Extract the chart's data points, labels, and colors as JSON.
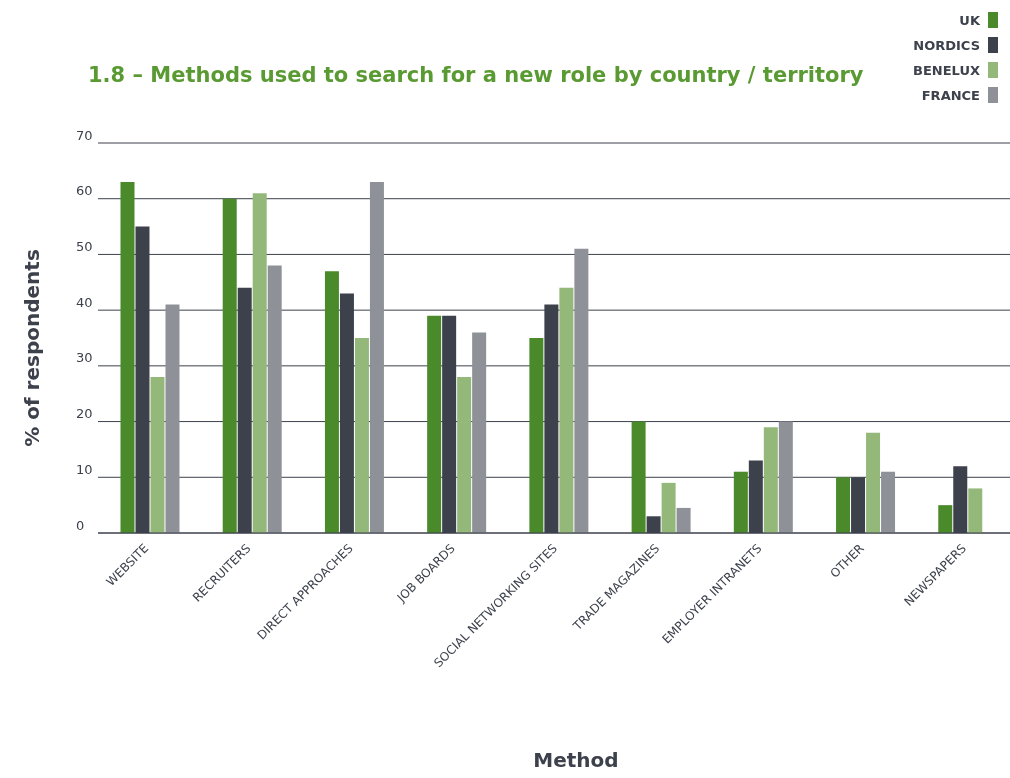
{
  "chart_data": {
    "type": "bar",
    "title": "1.8 – Methods used to search for a new role by country / territory",
    "xlabel": "Method",
    "ylabel": "% of respondents",
    "categories": [
      "WEBSITE",
      "RECRUITERS",
      "DIRECT APPROACHES",
      "JOB BOARDS",
      "SOCIAL NETWORKING SITES",
      "TRADE MAGAZINES",
      "EMPLOYER INTRANETS",
      "OTHER",
      "NEWSPAPERS"
    ],
    "series": [
      {
        "name": "UK",
        "color": "#4a8a2a",
        "values": [
          63,
          60,
          47,
          39,
          35,
          20,
          11,
          10,
          5
        ]
      },
      {
        "name": "NORDICS",
        "color": "#3c414c",
        "values": [
          55,
          44,
          43,
          39,
          41,
          3,
          13,
          10,
          12
        ]
      },
      {
        "name": "BENELUX",
        "color": "#94b87a",
        "values": [
          28,
          61,
          35,
          28,
          44,
          9,
          19,
          18,
          8
        ]
      },
      {
        "name": "FRANCE",
        "color": "#8f9198",
        "values": [
          41,
          48,
          63,
          36,
          51,
          4.5,
          20,
          11,
          null
        ]
      }
    ],
    "ylim": [
      0,
      70
    ],
    "yticks": [
      0,
      10,
      20,
      30,
      40,
      50,
      60,
      70
    ],
    "grid": "y",
    "legend": "top right"
  }
}
